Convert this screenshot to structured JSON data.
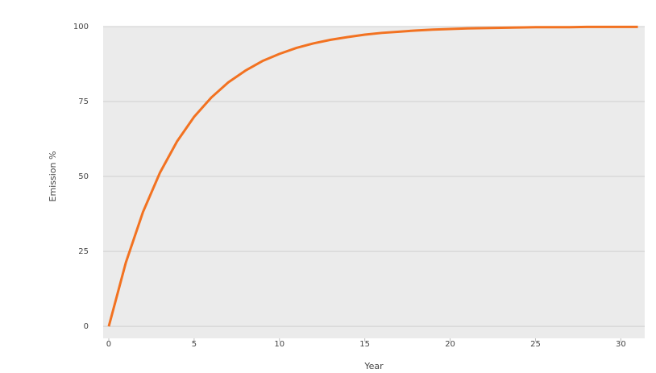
{
  "chart_data": {
    "type": "line",
    "x_label": "Year",
    "y_label": "Emission %",
    "x": [
      0,
      1,
      2,
      3,
      4,
      5,
      6,
      7,
      8,
      9,
      10,
      11,
      12,
      13,
      14,
      15,
      16,
      17,
      18,
      19,
      20,
      21,
      22,
      23,
      24,
      25,
      26,
      27,
      28,
      29,
      30,
      31
    ],
    "series": [
      {
        "name": "Emission",
        "color": "#f27221",
        "values": [
          0,
          21.3,
          38.1,
          51.3,
          61.7,
          69.9,
          76.3,
          81.4,
          85.3,
          88.5,
          90.9,
          92.9,
          94.4,
          95.6,
          96.5,
          97.3,
          97.9,
          98.3,
          98.7,
          99.0,
          99.2,
          99.4,
          99.5,
          99.6,
          99.7,
          99.8,
          99.8,
          99.8,
          99.9,
          99.9,
          99.9,
          99.9
        ]
      }
    ],
    "xlim": [
      -0.33,
      31.4
    ],
    "xticks": [
      0,
      5,
      10,
      15,
      20,
      25,
      30
    ],
    "ylim": [
      -4,
      100
    ],
    "yticks": [
      0,
      25,
      50,
      75,
      100
    ],
    "grid": true,
    "background": "#ebebeb"
  }
}
